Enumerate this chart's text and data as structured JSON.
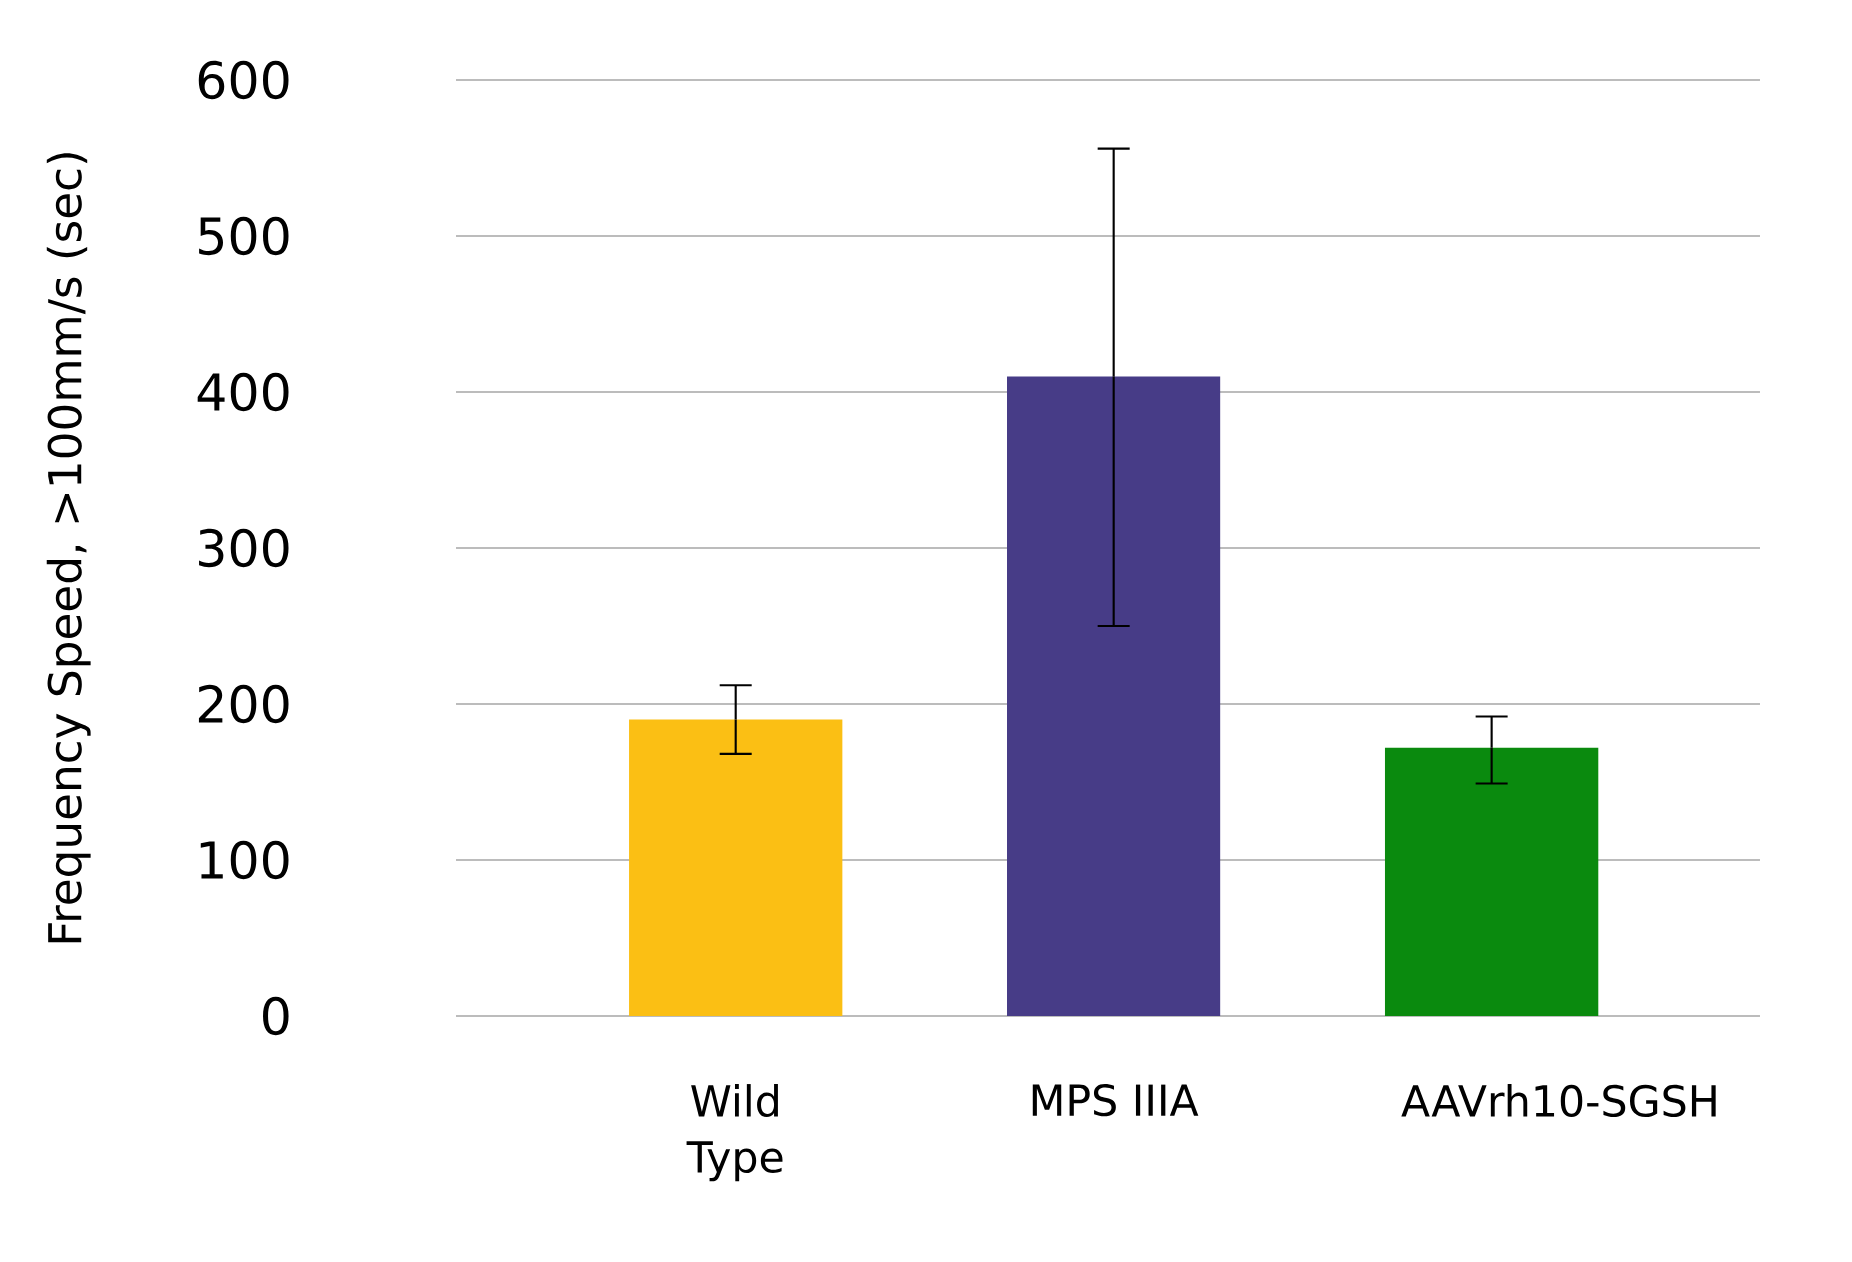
{
  "chart_data": {
    "type": "bar",
    "ylabel": "Frequency Speed, >100mm/s (sec)",
    "categories": [
      "Wild Type",
      "MPS IIIA",
      "AAVrh10-SGSH"
    ],
    "values": [
      190,
      410,
      172
    ],
    "colors": [
      "#fbbf14",
      "#473c87",
      "#0a8a0e"
    ],
    "errors": [
      [
        168,
        212
      ],
      [
        250,
        556
      ],
      [
        149,
        192
      ]
    ],
    "ylim": [
      0,
      600
    ],
    "yticks": [
      0,
      100,
      200,
      300,
      400,
      500,
      600
    ],
    "grid": "y"
  }
}
